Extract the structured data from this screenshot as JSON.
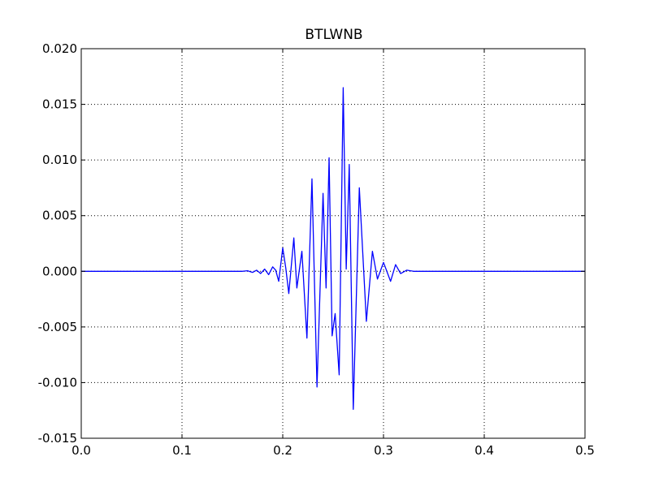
{
  "chart_data": {
    "type": "line",
    "title": "BTLWNB",
    "xlabel": "",
    "ylabel": "",
    "xlim": [
      0.0,
      0.5
    ],
    "ylim": [
      -0.015,
      0.02
    ],
    "x_ticks": [
      "0.0",
      "0.1",
      "0.2",
      "0.3",
      "0.4",
      "0.5"
    ],
    "y_ticks": [
      "0.020",
      "0.015",
      "0.010",
      "0.005",
      "0.000",
      "-0.005",
      "-0.010",
      "-0.015"
    ],
    "grid": true,
    "legend": "none",
    "series": [
      {
        "color": "#0000ff",
        "points": [
          [
            0.0,
            0.0
          ],
          [
            0.16,
            0.0
          ],
          [
            0.165,
            5e-05
          ],
          [
            0.17,
            -0.0001
          ],
          [
            0.174,
            0.0001
          ],
          [
            0.178,
            -0.0002
          ],
          [
            0.182,
            0.0002
          ],
          [
            0.186,
            -0.0003
          ],
          [
            0.19,
            0.0004
          ],
          [
            0.193,
            0.0001
          ],
          [
            0.196,
            -0.0009
          ],
          [
            0.2,
            0.0021
          ],
          [
            0.203,
            0.0003
          ],
          [
            0.206,
            -0.002
          ],
          [
            0.211,
            0.003
          ],
          [
            0.214,
            -0.0015
          ],
          [
            0.219,
            0.0018
          ],
          [
            0.224,
            -0.006
          ],
          [
            0.229,
            0.0083
          ],
          [
            0.234,
            -0.0104
          ],
          [
            0.24,
            0.007
          ],
          [
            0.243,
            -0.0015
          ],
          [
            0.246,
            0.0102
          ],
          [
            0.249,
            -0.0058
          ],
          [
            0.252,
            -0.0038
          ],
          [
            0.256,
            -0.0093
          ],
          [
            0.26,
            0.0165
          ],
          [
            0.263,
            0.0002
          ],
          [
            0.266,
            0.0096
          ],
          [
            0.27,
            -0.0124
          ],
          [
            0.276,
            0.0075
          ],
          [
            0.283,
            -0.0045
          ],
          [
            0.289,
            0.0018
          ],
          [
            0.294,
            -0.0007
          ],
          [
            0.3,
            0.0008
          ],
          [
            0.307,
            -0.0009
          ],
          [
            0.312,
            0.0006
          ],
          [
            0.317,
            -0.0002
          ],
          [
            0.323,
            0.0001
          ],
          [
            0.33,
            0.0
          ],
          [
            0.5,
            0.0
          ]
        ]
      }
    ]
  }
}
